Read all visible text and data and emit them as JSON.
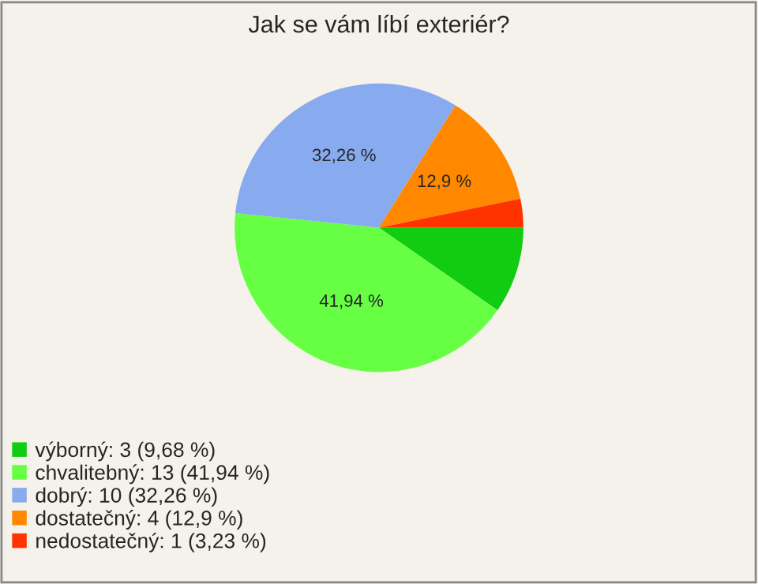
{
  "chart_data": {
    "type": "pie",
    "title": "Jak se vám líbí exteriér?",
    "categories": [
      "výborný: 3 (9,68 %)",
      "chvalitebný: 13 (41,94 %)",
      "dobrý: 10 (32,26 %)",
      "dostatečný: 4 (12,9 %)",
      "nedostatečný: 1 (3,23 %)"
    ],
    "values": [
      9.68,
      41.94,
      32.26,
      12.9,
      3.23
    ],
    "colors": [
      "#11cc11",
      "#66ff44",
      "#88aaee",
      "#ff8800",
      "#ff3300"
    ],
    "value_labels": [
      null,
      "41,94 %",
      "32,26 %",
      "12,9 %",
      null
    ],
    "legend": "bottom left"
  }
}
